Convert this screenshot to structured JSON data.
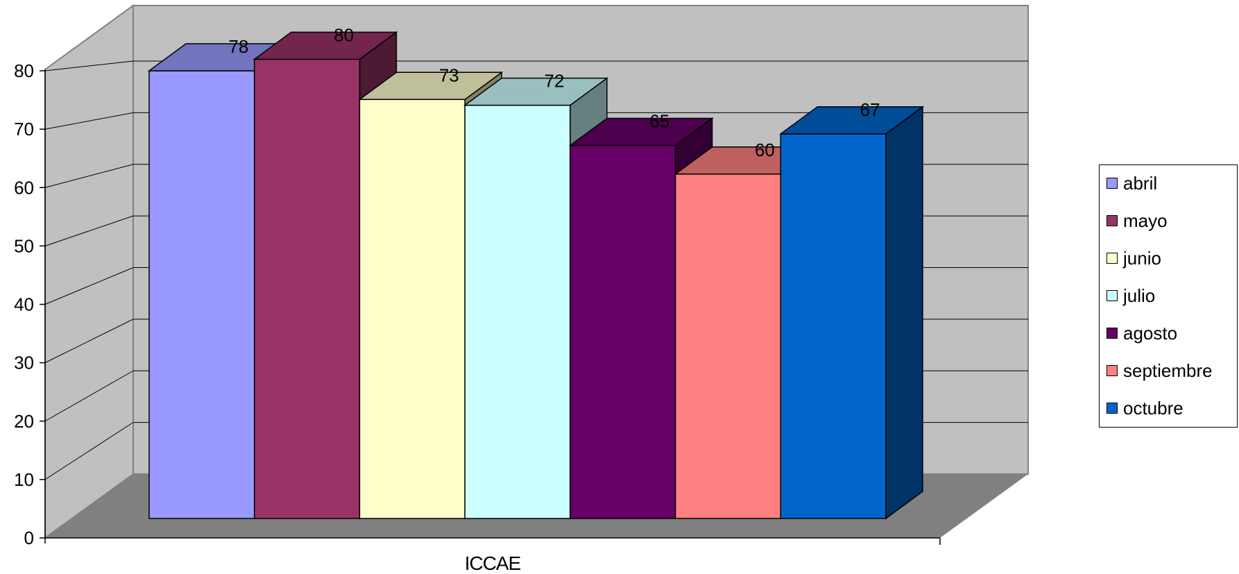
{
  "chart_data": {
    "type": "bar",
    "title": "",
    "categories": [
      "ICCAE"
    ],
    "series": [
      {
        "name": "abril",
        "values": [
          78
        ],
        "color": "#9999ff"
      },
      {
        "name": "mayo",
        "values": [
          80
        ],
        "color": "#993366"
      },
      {
        "name": "junio",
        "values": [
          73
        ],
        "color": "#ffffcc"
      },
      {
        "name": "julio",
        "values": [
          72
        ],
        "color": "#ccffff"
      },
      {
        "name": "agosto",
        "values": [
          65
        ],
        "color": "#660066"
      },
      {
        "name": "septiembre",
        "values": [
          60
        ],
        "color": "#ff8080"
      },
      {
        "name": "octubre",
        "values": [
          67
        ],
        "color": "#0066cc"
      }
    ],
    "xlabel": "",
    "ylabel": "",
    "ylim": [
      0,
      80
    ],
    "yticks": [
      "0",
      "10",
      "20",
      "30",
      "40",
      "50",
      "60",
      "70",
      "80"
    ],
    "grid": true,
    "legend_position": "right",
    "style": "3d-clustered-column",
    "colors": {
      "walls": "#c0c0c0",
      "floor": "#808080"
    }
  }
}
